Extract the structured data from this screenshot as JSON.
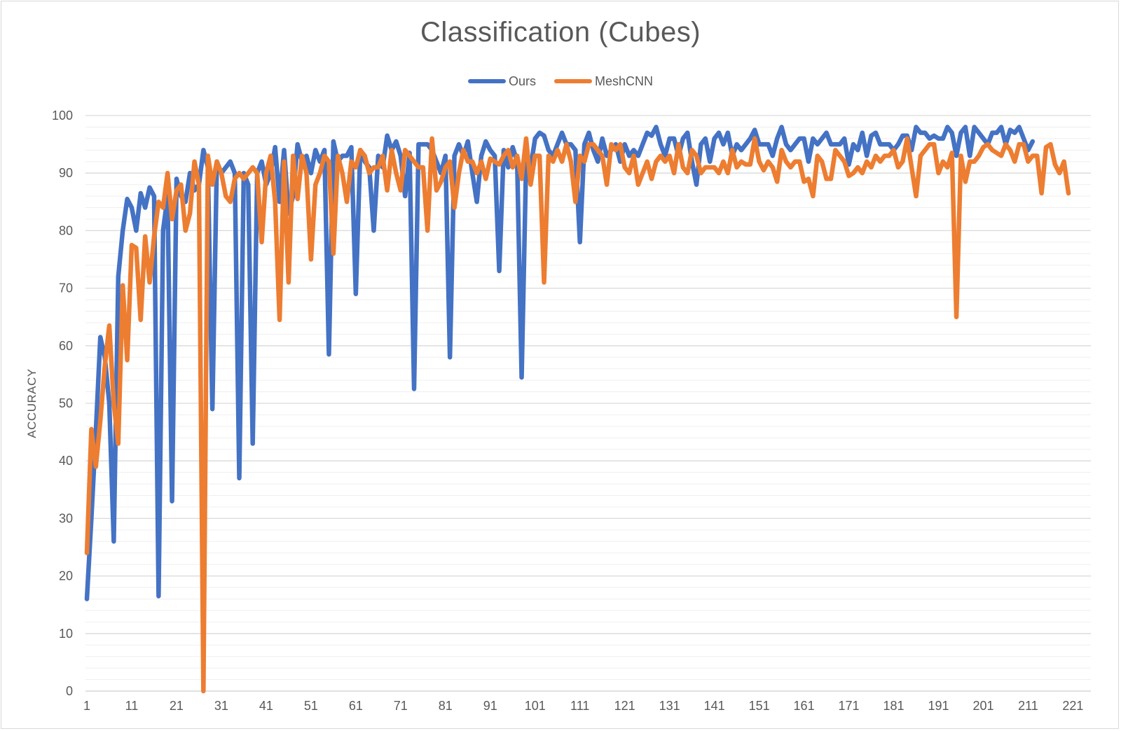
{
  "chart_data": {
    "type": "line",
    "title": "Classification (Cubes)",
    "xlabel": "",
    "ylabel": "ACCURACY",
    "ylim": [
      0,
      100
    ],
    "xlim": [
      1,
      225
    ],
    "y_ticks": [
      0,
      10,
      20,
      30,
      40,
      50,
      60,
      70,
      80,
      90,
      100
    ],
    "x_ticks": [
      1,
      11,
      21,
      31,
      41,
      51,
      61,
      71,
      81,
      91,
      101,
      111,
      121,
      131,
      141,
      151,
      161,
      171,
      181,
      191,
      201,
      211,
      221
    ],
    "grid": "horizontal major and minor",
    "legend_position": "top",
    "series": [
      {
        "name": "Ours",
        "color": "#4472c4",
        "values": [
          16,
          30,
          45,
          61.5,
          58,
          50,
          26,
          72,
          80,
          85.5,
          84,
          80,
          86.5,
          84,
          87.5,
          86,
          16.5,
          80,
          86,
          33,
          89,
          86,
          85,
          90,
          87,
          88,
          94,
          91,
          49,
          92,
          90,
          91,
          92,
          90,
          37,
          90,
          88,
          43,
          90,
          92,
          88,
          90,
          94.5,
          85,
          94,
          83,
          86,
          95,
          92,
          93,
          90,
          94,
          92,
          94,
          58.5,
          95.5,
          92,
          93,
          93,
          94.5,
          69,
          94,
          92,
          91,
          80,
          93,
          91,
          96.5,
          94,
          95.5,
          93,
          86,
          93.5,
          52.5,
          95,
          95,
          95,
          94,
          92,
          90,
          93,
          58,
          93,
          95,
          93,
          95.5,
          90,
          85,
          93,
          95.5,
          94,
          93,
          73,
          94,
          91,
          94.5,
          92,
          54.5,
          92,
          91,
          96,
          97,
          96.5,
          94,
          93,
          95,
          97,
          95,
          95,
          94,
          78,
          95,
          97,
          94,
          92,
          96,
          93,
          94,
          95,
          92,
          95,
          93,
          94,
          93,
          95,
          97,
          96.5,
          98,
          95,
          93,
          96,
          96,
          93,
          96,
          97,
          92,
          88,
          95,
          96,
          92,
          96,
          97,
          95,
          97,
          93,
          95,
          94,
          95,
          96,
          97.5,
          95,
          95,
          95,
          93,
          96,
          98,
          95,
          94,
          95,
          96,
          96,
          92,
          96,
          95,
          96,
          97,
          95,
          95,
          95,
          96,
          91.5,
          95,
          94,
          97,
          93,
          96.5,
          97,
          95,
          95,
          95,
          94,
          95,
          96.5,
          96.5,
          94,
          98,
          97,
          97,
          96,
          96.5,
          96,
          96,
          98,
          97,
          93,
          97,
          98,
          93,
          98,
          97,
          96,
          95,
          97,
          97,
          98,
          95,
          97.5,
          97,
          98,
          96,
          94,
          95.5
        ],
        "note": ""
      },
      {
        "name": "MeshCNN",
        "color": "#ed7d31",
        "values": [
          24,
          45.5,
          39,
          47,
          56.5,
          63.5,
          50,
          43,
          70.5,
          57.5,
          77.5,
          77,
          64.5,
          79,
          71,
          79,
          85,
          84,
          90,
          82,
          87,
          88,
          80,
          83,
          92,
          88,
          0,
          93,
          88,
          92,
          90,
          86,
          85,
          89,
          90,
          89,
          90,
          91,
          90,
          78,
          90,
          93,
          85,
          64.5,
          92,
          71,
          93,
          85.5,
          93,
          90,
          75,
          88,
          90,
          93,
          92,
          76,
          93,
          90,
          85,
          92,
          91,
          94,
          93,
          90,
          91,
          91,
          93,
          87,
          94,
          90,
          87,
          94,
          93,
          92,
          91,
          91,
          80,
          96,
          87,
          88.5,
          91,
          92,
          84,
          90,
          94,
          92,
          92,
          90,
          92,
          89,
          92.5,
          92,
          91.5,
          93,
          94,
          91,
          93,
          89,
          96,
          88,
          93,
          93,
          71,
          93,
          92,
          94,
          92,
          95,
          92,
          85,
          93,
          92,
          95,
          95,
          94,
          93,
          88,
          95,
          94,
          95,
          91,
          90,
          93,
          88,
          90,
          92,
          89,
          92,
          93,
          92,
          93,
          90,
          95,
          91,
          90,
          94,
          93,
          90,
          91,
          91,
          91,
          90,
          92,
          90,
          94,
          91,
          92,
          91.5,
          91.5,
          96,
          92,
          90.5,
          92,
          91,
          88.5,
          94,
          92,
          91,
          92,
          92,
          88.5,
          89,
          86,
          93,
          92,
          89,
          89,
          94,
          93,
          92,
          89.5,
          90,
          91,
          90,
          92,
          91,
          93,
          92,
          93,
          93,
          94,
          91,
          92,
          96,
          91,
          86,
          93,
          94,
          95,
          95,
          90,
          92,
          91,
          93.5,
          65,
          93,
          88.5,
          92,
          92,
          93,
          94.5,
          95,
          94,
          93.5,
          93,
          95,
          94,
          92,
          95,
          95,
          92,
          93,
          93,
          86.5,
          94.5,
          95,
          91.5,
          90,
          92,
          86.5
        ]
      }
    ]
  }
}
